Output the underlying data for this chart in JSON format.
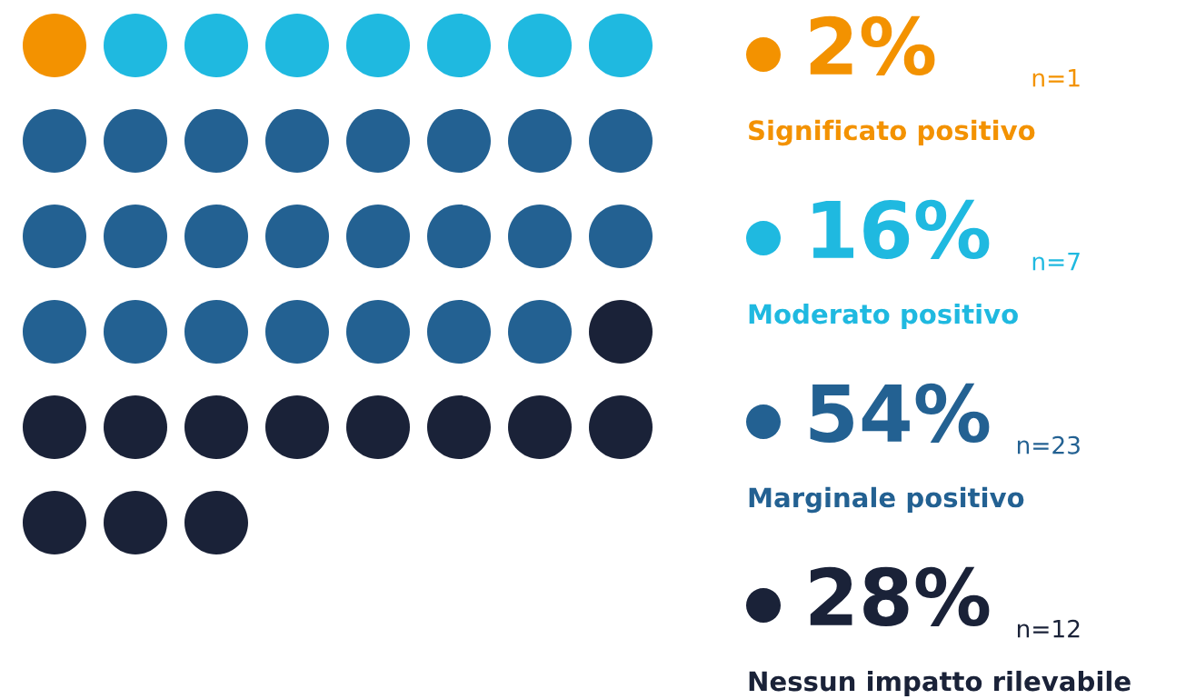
{
  "chart_data": {
    "type": "other",
    "categories": [
      "Significato positivo",
      "Moderato positivo",
      "Marginale positivo",
      "Nessun impatto rilevabile"
    ],
    "values": [
      1,
      7,
      23,
      12
    ],
    "value_labels": [
      "n=1",
      "n=7",
      "n=23",
      "n=12"
    ],
    "annotations": [
      "2%",
      "16%",
      "54%",
      "28%"
    ],
    "colors": [
      "#f39200",
      "#1fb9e0",
      "#236192",
      "#1a2238"
    ]
  }
}
